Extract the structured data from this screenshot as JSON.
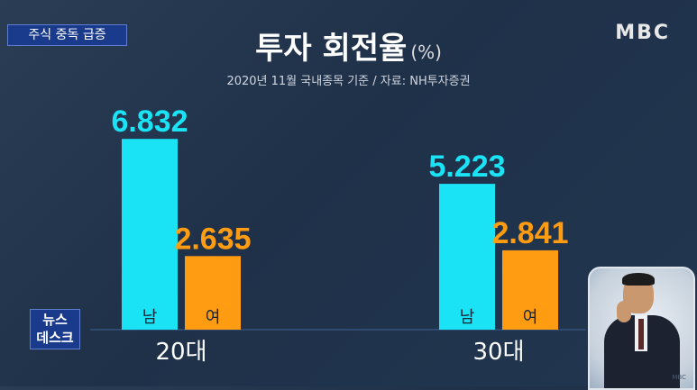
{
  "topic": "주식 중독 급증",
  "broadcaster": "MBC",
  "news_badge": [
    "뉴스",
    "데스크"
  ],
  "colors": {
    "male": "#19e3f5",
    "female": "#ff9c12"
  },
  "chart_data": {
    "type": "bar",
    "title": "투자 회전율",
    "unit": "(%)",
    "subtitle": "2020년 11월 국내종목 기준 / 자료: NH투자증권",
    "groups": [
      "20대",
      "30대"
    ],
    "series": [
      {
        "name": "남",
        "values": [
          6.832,
          5.223
        ]
      },
      {
        "name": "여",
        "values": [
          2.635,
          2.841
        ]
      }
    ],
    "value_labels": [
      [
        "6.832",
        "2.635"
      ],
      [
        "5.223",
        "2.841"
      ]
    ]
  }
}
